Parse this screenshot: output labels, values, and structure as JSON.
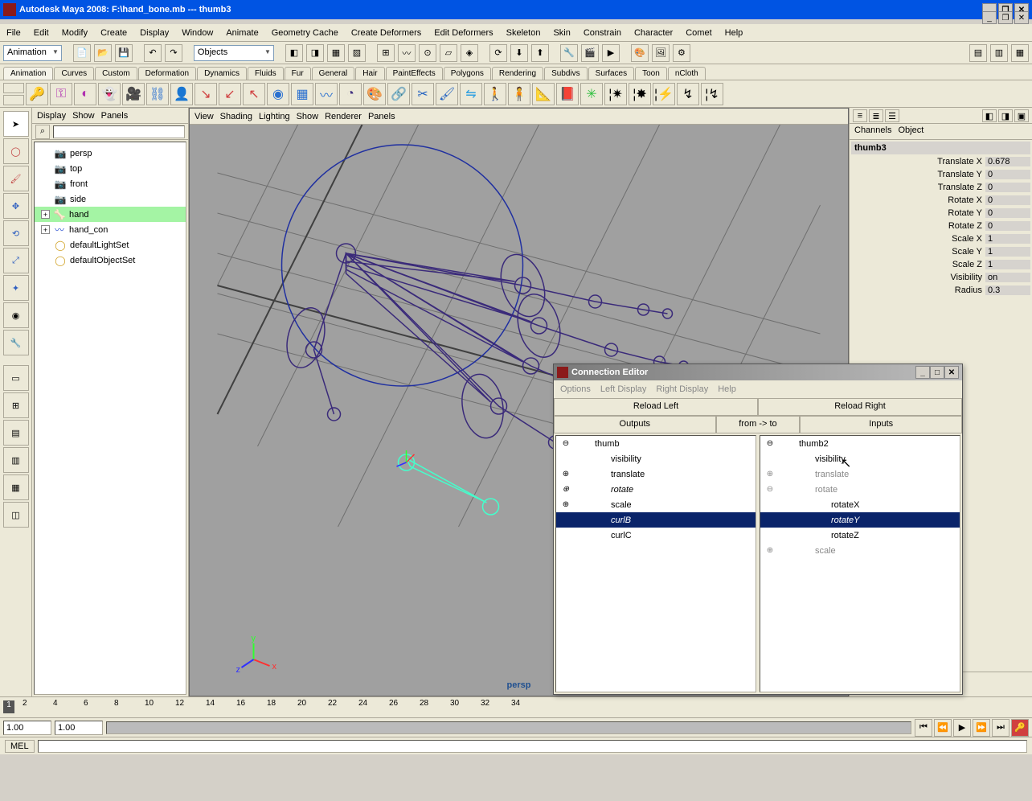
{
  "titlebar": {
    "app": "Autodesk Maya 2008: ",
    "file": "F:\\hand_bone.mb",
    "sep": "   ---   ",
    "object": "thumb3"
  },
  "menubar": [
    "File",
    "Edit",
    "Modify",
    "Create",
    "Display",
    "Window",
    "Animate",
    "Geometry Cache",
    "Create Deformers",
    "Edit Deformers",
    "Skeleton",
    "Skin",
    "Constrain",
    "Character",
    "Comet",
    "Help"
  ],
  "module_dropdown": "Animation",
  "mask_dropdown": "Objects",
  "tabs": [
    "Animation",
    "Curves",
    "Custom",
    "Deformation",
    "Dynamics",
    "Fluids",
    "Fur",
    "General",
    "Hair",
    "PaintEffects",
    "Polygons",
    "Rendering",
    "Subdivs",
    "Surfaces",
    "Toon",
    "nCloth"
  ],
  "active_tab": "Animation",
  "outliner": {
    "menus": [
      "Display",
      "Show",
      "Panels"
    ],
    "items": [
      {
        "icon": "cam",
        "label": "persp",
        "indent": 1
      },
      {
        "icon": "cam",
        "label": "top",
        "indent": 1
      },
      {
        "icon": "cam",
        "label": "front",
        "indent": 1
      },
      {
        "icon": "cam",
        "label": "side",
        "indent": 1
      },
      {
        "icon": "joint",
        "label": "hand",
        "indent": 1,
        "expand": "+",
        "selected": true
      },
      {
        "icon": "curve",
        "label": "hand_con",
        "indent": 1,
        "expand": "+"
      },
      {
        "icon": "set",
        "label": "defaultLightSet",
        "indent": 1
      },
      {
        "icon": "set",
        "label": "defaultObjectSet",
        "indent": 1
      }
    ]
  },
  "viewport": {
    "menus": [
      "View",
      "Shading",
      "Lighting",
      "Show",
      "Renderer",
      "Panels"
    ],
    "camera_label": "persp",
    "axis": {
      "x": "x",
      "y": "y",
      "z": "z"
    },
    "grid_color": "#6f6f6f",
    "bg_color": "#a3a3a3",
    "joint_color": "#3a2a7a",
    "sel_color": "#44ffcc"
  },
  "channels": {
    "tabs": [
      "Channels",
      "Object"
    ],
    "node": "thumb3",
    "attrs": [
      {
        "label": "Translate X",
        "value": "0.678"
      },
      {
        "label": "Translate Y",
        "value": "0"
      },
      {
        "label": "Translate Z",
        "value": "0"
      },
      {
        "label": "Rotate X",
        "value": "0"
      },
      {
        "label": "Rotate Y",
        "value": "0"
      },
      {
        "label": "Rotate Z",
        "value": "0"
      },
      {
        "label": "Scale X",
        "value": "1"
      },
      {
        "label": "Scale Y",
        "value": "1"
      },
      {
        "label": "Scale Z",
        "value": "1"
      },
      {
        "label": "Visibility",
        "value": "on"
      },
      {
        "label": "Radius",
        "value": "0.3"
      }
    ]
  },
  "timeline": {
    "ticks": [
      "2",
      "4",
      "6",
      "8",
      "10",
      "12",
      "14",
      "16",
      "18",
      "20",
      "22",
      "24",
      "26",
      "28",
      "30",
      "32",
      "34"
    ],
    "current": "1",
    "range_start": "1.00",
    "range_end": "1.00"
  },
  "mel_label": "MEL",
  "conn_editor": {
    "title": "Connection Editor",
    "menus": [
      "Options",
      "Left Display",
      "Right Display",
      "Help"
    ],
    "reload_left": "Reload Left",
    "reload_right": "Reload Right",
    "outputs": "Outputs",
    "from_to": "from -> to",
    "inputs": "Inputs",
    "left": [
      {
        "exp": "⊖",
        "label": "thumb",
        "indent": 0
      },
      {
        "label": "visibility",
        "indent": 1
      },
      {
        "exp": "⊕",
        "label": "translate",
        "indent": 1
      },
      {
        "exp": "⊕",
        "label": "rotate",
        "indent": 1,
        "italic": true
      },
      {
        "exp": "⊕",
        "label": "scale",
        "indent": 1
      },
      {
        "label": "curlB",
        "indent": 1,
        "sel": true,
        "italic": true
      },
      {
        "label": "curlC",
        "indent": 1
      }
    ],
    "right": [
      {
        "exp": "⊖",
        "label": "thumb2",
        "indent": 0
      },
      {
        "label": "visibility",
        "indent": 1
      },
      {
        "exp": "⊕",
        "label": "translate",
        "indent": 1,
        "grey": true
      },
      {
        "exp": "⊖",
        "label": "rotate",
        "indent": 1,
        "grey": true
      },
      {
        "label": "rotateX",
        "indent": 2
      },
      {
        "label": "rotateY",
        "indent": 2,
        "sel": true,
        "italic": true
      },
      {
        "label": "rotateZ",
        "indent": 2
      },
      {
        "exp": "⊕",
        "label": "scale",
        "indent": 1,
        "grey": true
      }
    ]
  },
  "colors": {
    "titlebar": "#0054e3",
    "ui_bg": "#ece9d8",
    "selection_blue": "#0a246a",
    "selection_green": "#a4f4a4"
  }
}
